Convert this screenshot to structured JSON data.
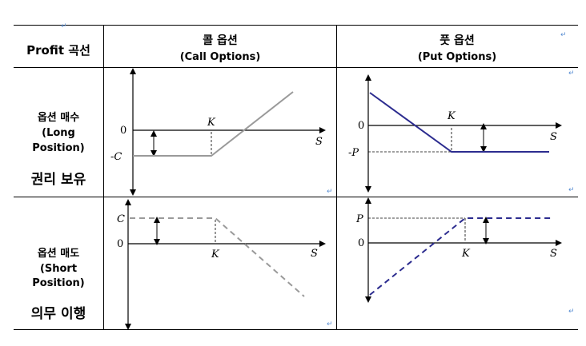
{
  "header": {
    "row_label": "Profit 곡선",
    "call": {
      "ko": "콜 옵션",
      "en": "(Call Options)"
    },
    "put": {
      "ko": "풋 옵션",
      "en": "(Put Options)"
    }
  },
  "rows": {
    "long": {
      "ko": "옵션 매수",
      "en1": "(Long",
      "en2": "Position)",
      "extra": "권리 보유"
    },
    "short": {
      "ko": "옵션 매도",
      "en1": "(Short",
      "en2": "Position)",
      "extra": "의무 이행"
    }
  },
  "panels": {
    "long_call": {
      "y_label": "-C",
      "zero": "0",
      "strike": "K",
      "x_label": "S"
    },
    "long_put": {
      "y_label": "-P",
      "zero": "0",
      "strike": "K",
      "x_label": "S"
    },
    "short_call": {
      "y_label": "C",
      "zero": "0",
      "strike": "K",
      "x_label": "S"
    },
    "short_put": {
      "y_label": "P",
      "zero": "0",
      "strike": "K",
      "x_label": "S"
    }
  },
  "colors": {
    "call_line": "#9a9a9a",
    "put_line": "#2c2c8f",
    "grid": "#000000"
  }
}
